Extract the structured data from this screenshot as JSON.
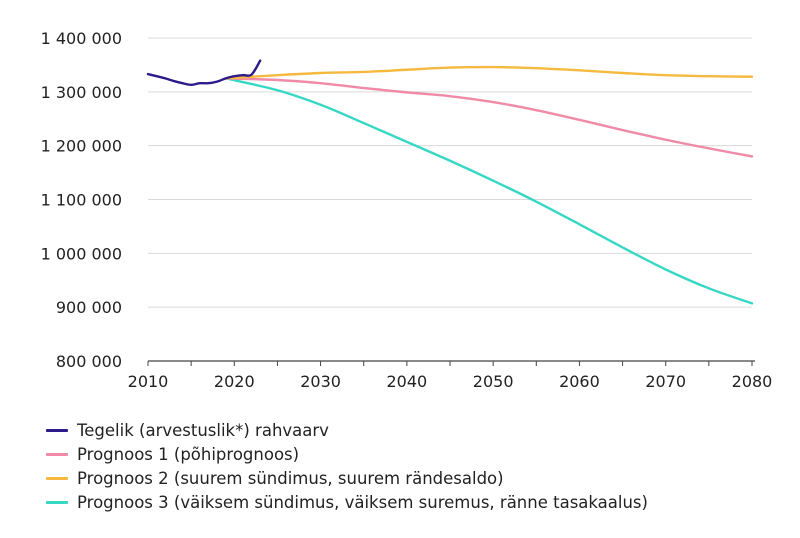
{
  "chart_data": {
    "type": "line",
    "title": "",
    "xlabel": "",
    "ylabel": "",
    "xlim": [
      2010,
      2080
    ],
    "ylim": [
      800000,
      1400000
    ],
    "x_ticks": [
      {
        "value": 2010,
        "label": "2010"
      },
      {
        "value": 2020,
        "label": "2020"
      },
      {
        "value": 2030,
        "label": "2030"
      },
      {
        "value": 2040,
        "label": "2040"
      },
      {
        "value": 2050,
        "label": "2050"
      },
      {
        "value": 2060,
        "label": "2060"
      },
      {
        "value": 2070,
        "label": "2070"
      },
      {
        "value": 2080,
        "label": "2080"
      }
    ],
    "y_ticks": [
      {
        "value": 800000,
        "label": "800 000"
      },
      {
        "value": 900000,
        "label": "900 000"
      },
      {
        "value": 1000000,
        "label": "1 000 000"
      },
      {
        "value": 1100000,
        "label": "1 100 000"
      },
      {
        "value": 1200000,
        "label": "1 200 000"
      },
      {
        "value": 1300000,
        "label": "1 300 000"
      },
      {
        "value": 1400000,
        "label": "1 400 000"
      }
    ],
    "grid": "horizontal",
    "legend_position": "bottom-left",
    "series": [
      {
        "name": "Tegelik (arvestuslik*) rahvaarv",
        "color": "#2e1a8a",
        "x": [
          2010,
          2011,
          2012,
          2013,
          2014,
          2015,
          2016,
          2017,
          2018,
          2019,
          2020,
          2021,
          2022,
          2023
        ],
        "y": [
          1333000,
          1329000,
          1325000,
          1320000,
          1316000,
          1313000,
          1316000,
          1316000,
          1319000,
          1325000,
          1329000,
          1331000,
          1332000,
          1358000
        ]
      },
      {
        "name": "Prognoos 1 (põhiprognoos)",
        "color": "#f08aa6",
        "x": [
          2019,
          2025,
          2030,
          2035,
          2040,
          2045,
          2050,
          2055,
          2060,
          2065,
          2070,
          2075,
          2080
        ],
        "y": [
          1325000,
          1322000,
          1316000,
          1307000,
          1299000,
          1292000,
          1281000,
          1266000,
          1248000,
          1229000,
          1211000,
          1195000,
          1180000
        ]
      },
      {
        "name": "Prognoos 2 (suurem sündimus, suurem rändesaldo)",
        "color": "#f6b940",
        "x": [
          2019,
          2025,
          2030,
          2035,
          2040,
          2045,
          2050,
          2055,
          2060,
          2065,
          2070,
          2075,
          2080
        ],
        "y": [
          1325000,
          1331000,
          1335000,
          1337000,
          1341000,
          1345000,
          1346000,
          1344000,
          1340000,
          1335000,
          1331000,
          1329000,
          1328000
        ]
      },
      {
        "name": "Prognoos 3 (väiksem sündimus, väiksem suremus, ränne tasakaalus)",
        "color": "#36d8c4",
        "x": [
          2019,
          2025,
          2030,
          2035,
          2040,
          2045,
          2050,
          2055,
          2060,
          2065,
          2070,
          2075,
          2080
        ],
        "y": [
          1325000,
          1303000,
          1276000,
          1242000,
          1207000,
          1172000,
          1135000,
          1096000,
          1054000,
          1011000,
          970000,
          935000,
          907000
        ]
      }
    ]
  }
}
